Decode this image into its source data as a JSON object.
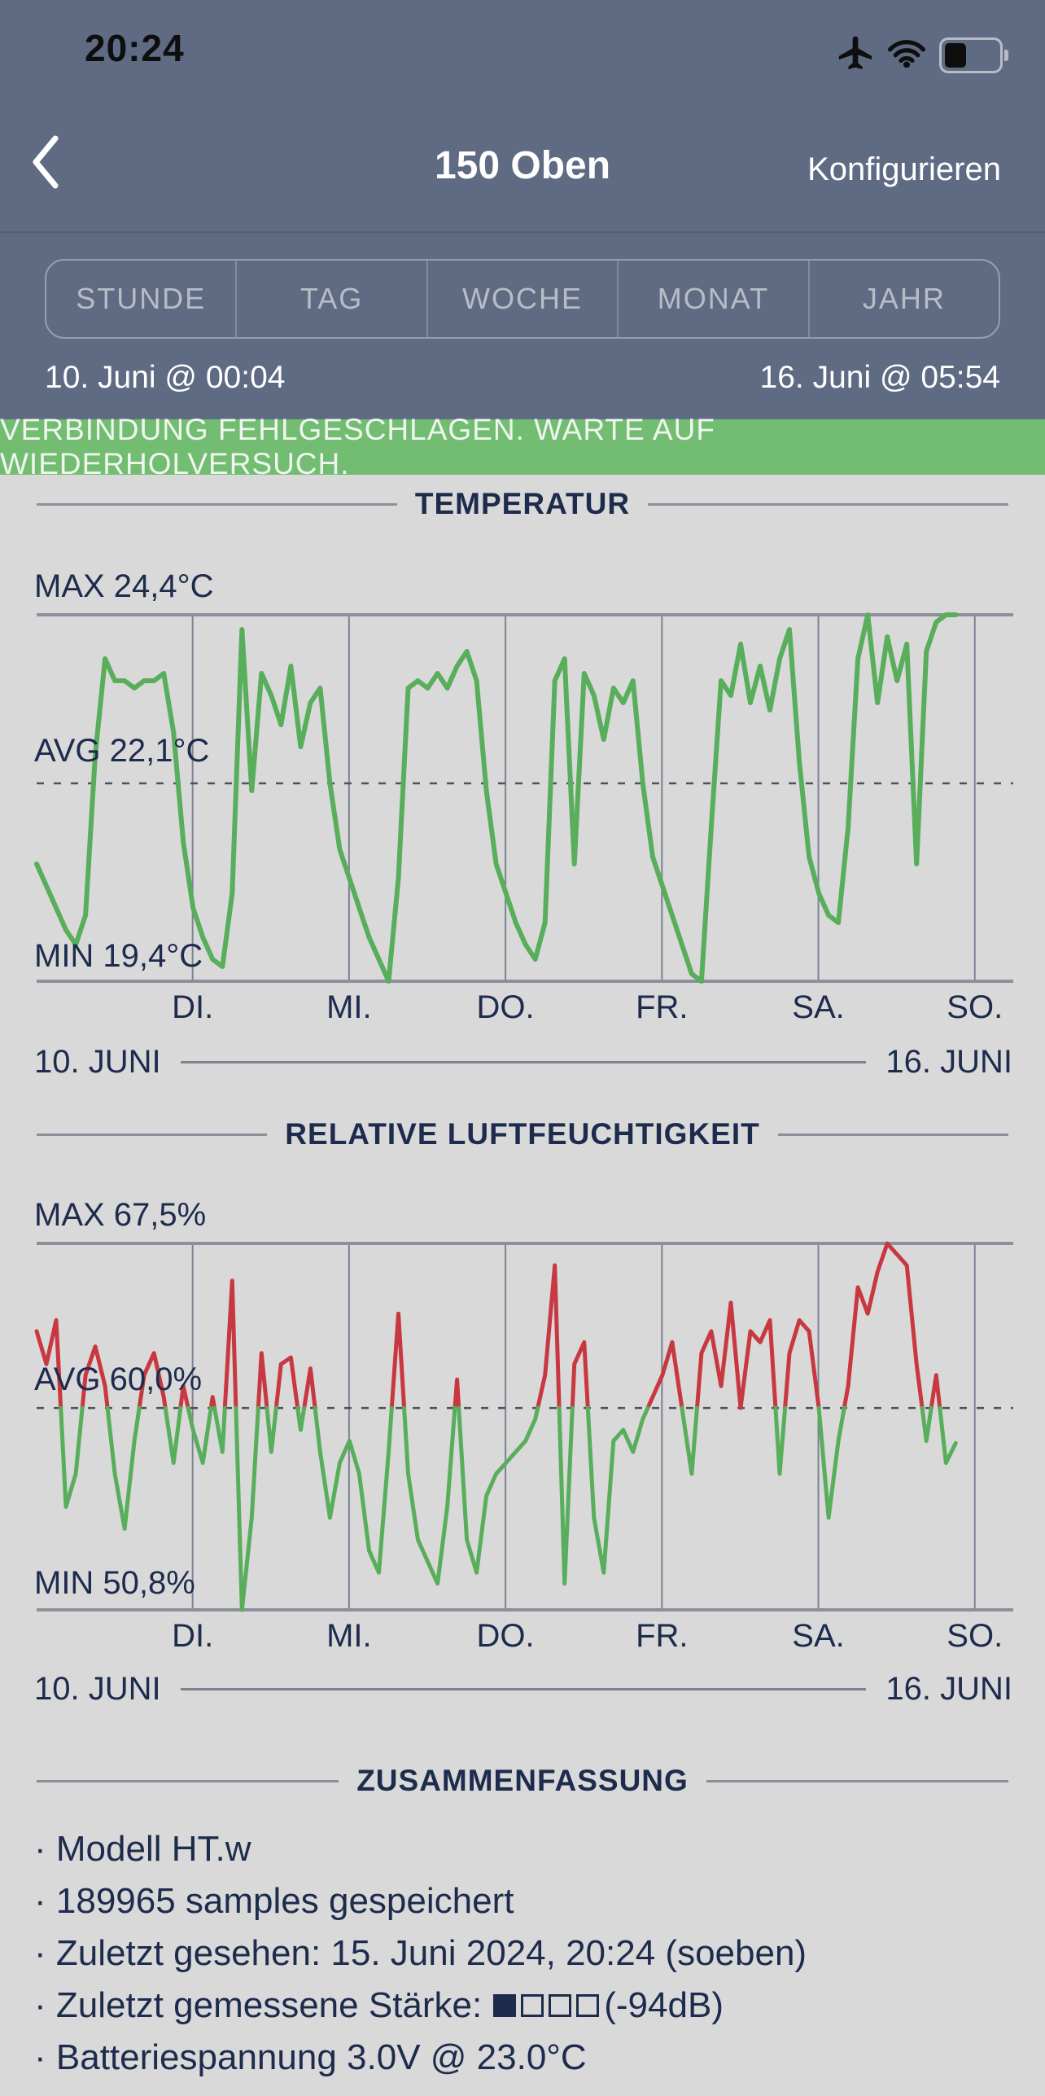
{
  "status_bar": {
    "time": "20:24"
  },
  "nav": {
    "title": "150 Oben",
    "action": "Konfigurieren"
  },
  "period_tabs": {
    "items": [
      "STUNDE",
      "TAG",
      "WOCHE",
      "MONAT",
      "JAHR"
    ]
  },
  "date_range": {
    "start": "10. Juni @ 00:04",
    "end": "16. Juni @ 05:54"
  },
  "banner": {
    "text": "VERBINDUNG FEHLGESCHLAGEN. WARTE AUF WIEDERHOLVERSUCH."
  },
  "colors": {
    "header_bg": "#5f6b83",
    "banner_bg": "#72bd72",
    "content_bg": "#d9d9d9",
    "navy_text": "#1d2b4d",
    "chart_green": "#58ae5b",
    "chart_red": "#c83840",
    "grid_line": "#7b8292",
    "border_line": "#8b909b",
    "avg_dash": "#4c5260"
  },
  "chart_data": [
    {
      "type": "line",
      "title": "TEMPERATUR",
      "unit": "°C",
      "max_label": "MAX 24,4°C",
      "avg_label": "AVG 22,1°C",
      "min_label": "MIN 19,4°C",
      "ymax": 24.4,
      "yavg": 22.1,
      "ymin": 19.4,
      "x_start_label": "10. JUNI",
      "x_end_label": "16. JUNI",
      "x_tick_labels": [
        "DI.",
        "MI.",
        "DO.",
        "FR.",
        "SA.",
        "SO."
      ],
      "tick_hours": [
        23.93,
        47.93,
        71.93,
        95.93,
        119.93,
        143.93
      ],
      "x_total_hours": 149.83,
      "sample_step_hours": 1.5,
      "color_mode": "single",
      "line_color": "#58ae5b",
      "values": [
        21.0,
        20.7,
        20.4,
        20.1,
        19.9,
        20.3,
        22.5,
        23.8,
        23.5,
        23.5,
        23.4,
        23.5,
        23.5,
        23.6,
        22.8,
        21.3,
        20.4,
        20.0,
        19.7,
        19.6,
        20.6,
        24.2,
        22.0,
        23.6,
        23.3,
        22.9,
        23.7,
        22.6,
        23.2,
        23.4,
        22.1,
        21.2,
        20.8,
        20.4,
        20.0,
        19.7,
        19.4,
        20.8,
        23.4,
        23.5,
        23.4,
        23.6,
        23.4,
        23.7,
        23.9,
        23.5,
        22.0,
        21.0,
        20.6,
        20.2,
        19.9,
        19.7,
        20.2,
        23.5,
        23.8,
        21.0,
        23.6,
        23.3,
        22.7,
        23.4,
        23.2,
        23.5,
        22.1,
        21.1,
        20.7,
        20.3,
        19.9,
        19.5,
        19.4,
        21.5,
        23.5,
        23.3,
        24.0,
        23.2,
        23.7,
        23.1,
        23.8,
        24.2,
        22.4,
        21.1,
        20.6,
        20.3,
        20.2,
        21.5,
        23.8,
        24.4,
        23.2,
        24.1,
        23.5,
        24.0,
        21.0,
        23.9,
        24.3,
        24.4,
        24.4
      ]
    },
    {
      "type": "line",
      "title": "RELATIVE LUFTFEUCHTIGKEIT",
      "unit": "%",
      "max_label": "MAX 67,5%",
      "avg_label": "AVG 60,0%",
      "min_label": "MIN 50,8%",
      "ymax": 67.5,
      "yavg": 60.0,
      "ymin": 50.8,
      "x_start_label": "10. JUNI",
      "x_end_label": "16. JUNI",
      "x_tick_labels": [
        "DI.",
        "MI.",
        "DO.",
        "FR.",
        "SA.",
        "SO."
      ],
      "tick_hours": [
        23.93,
        47.93,
        71.93,
        95.93,
        119.93,
        143.93
      ],
      "x_total_hours": 149.83,
      "sample_step_hours": 1.5,
      "color_mode": "split_avg",
      "color_above": "#c83840",
      "color_below": "#58ae5b",
      "values": [
        63.5,
        62.0,
        64.0,
        55.5,
        57.0,
        61.5,
        62.8,
        61.0,
        57.0,
        54.5,
        58.5,
        61.5,
        62.5,
        60.5,
        57.5,
        61.0,
        59.0,
        57.5,
        60.5,
        58.0,
        65.8,
        50.8,
        55.0,
        62.5,
        58.0,
        62.0,
        62.3,
        59.0,
        61.8,
        58.0,
        55.0,
        57.5,
        58.5,
        57.0,
        53.5,
        52.5,
        58.0,
        64.3,
        57.0,
        54.0,
        53.0,
        52.0,
        55.5,
        61.3,
        54.0,
        52.5,
        56.0,
        57.0,
        57.5,
        58.0,
        58.5,
        59.5,
        61.5,
        66.5,
        52.0,
        62.0,
        63.0,
        55.0,
        52.5,
        58.5,
        59.0,
        58.0,
        59.5,
        60.5,
        61.5,
        63.0,
        60.0,
        57.0,
        62.5,
        63.5,
        61.0,
        64.8,
        60.0,
        63.5,
        63.0,
        64.0,
        57.0,
        62.5,
        64.0,
        63.5,
        60.0,
        55.0,
        58.5,
        61.0,
        65.5,
        64.3,
        66.2,
        67.5,
        67.0,
        66.5,
        62.0,
        58.5,
        61.5,
        57.5,
        58.4
      ]
    }
  ],
  "summary": {
    "title": "ZUSAMMENFASSUNG",
    "items": [
      "· Modell HT.w",
      "· 189965 samples gespeichert",
      "· Zuletzt gesehen: 15. Juni 2024, 20:24 (soeben)"
    ],
    "signal": {
      "label": "· Zuletzt gemessene Stärke:",
      "bars_filled": 1,
      "bars_total": 4,
      "value": "(-94dB)"
    },
    "battery": "· Batteriespannung 3.0V @ 23.0°C"
  }
}
